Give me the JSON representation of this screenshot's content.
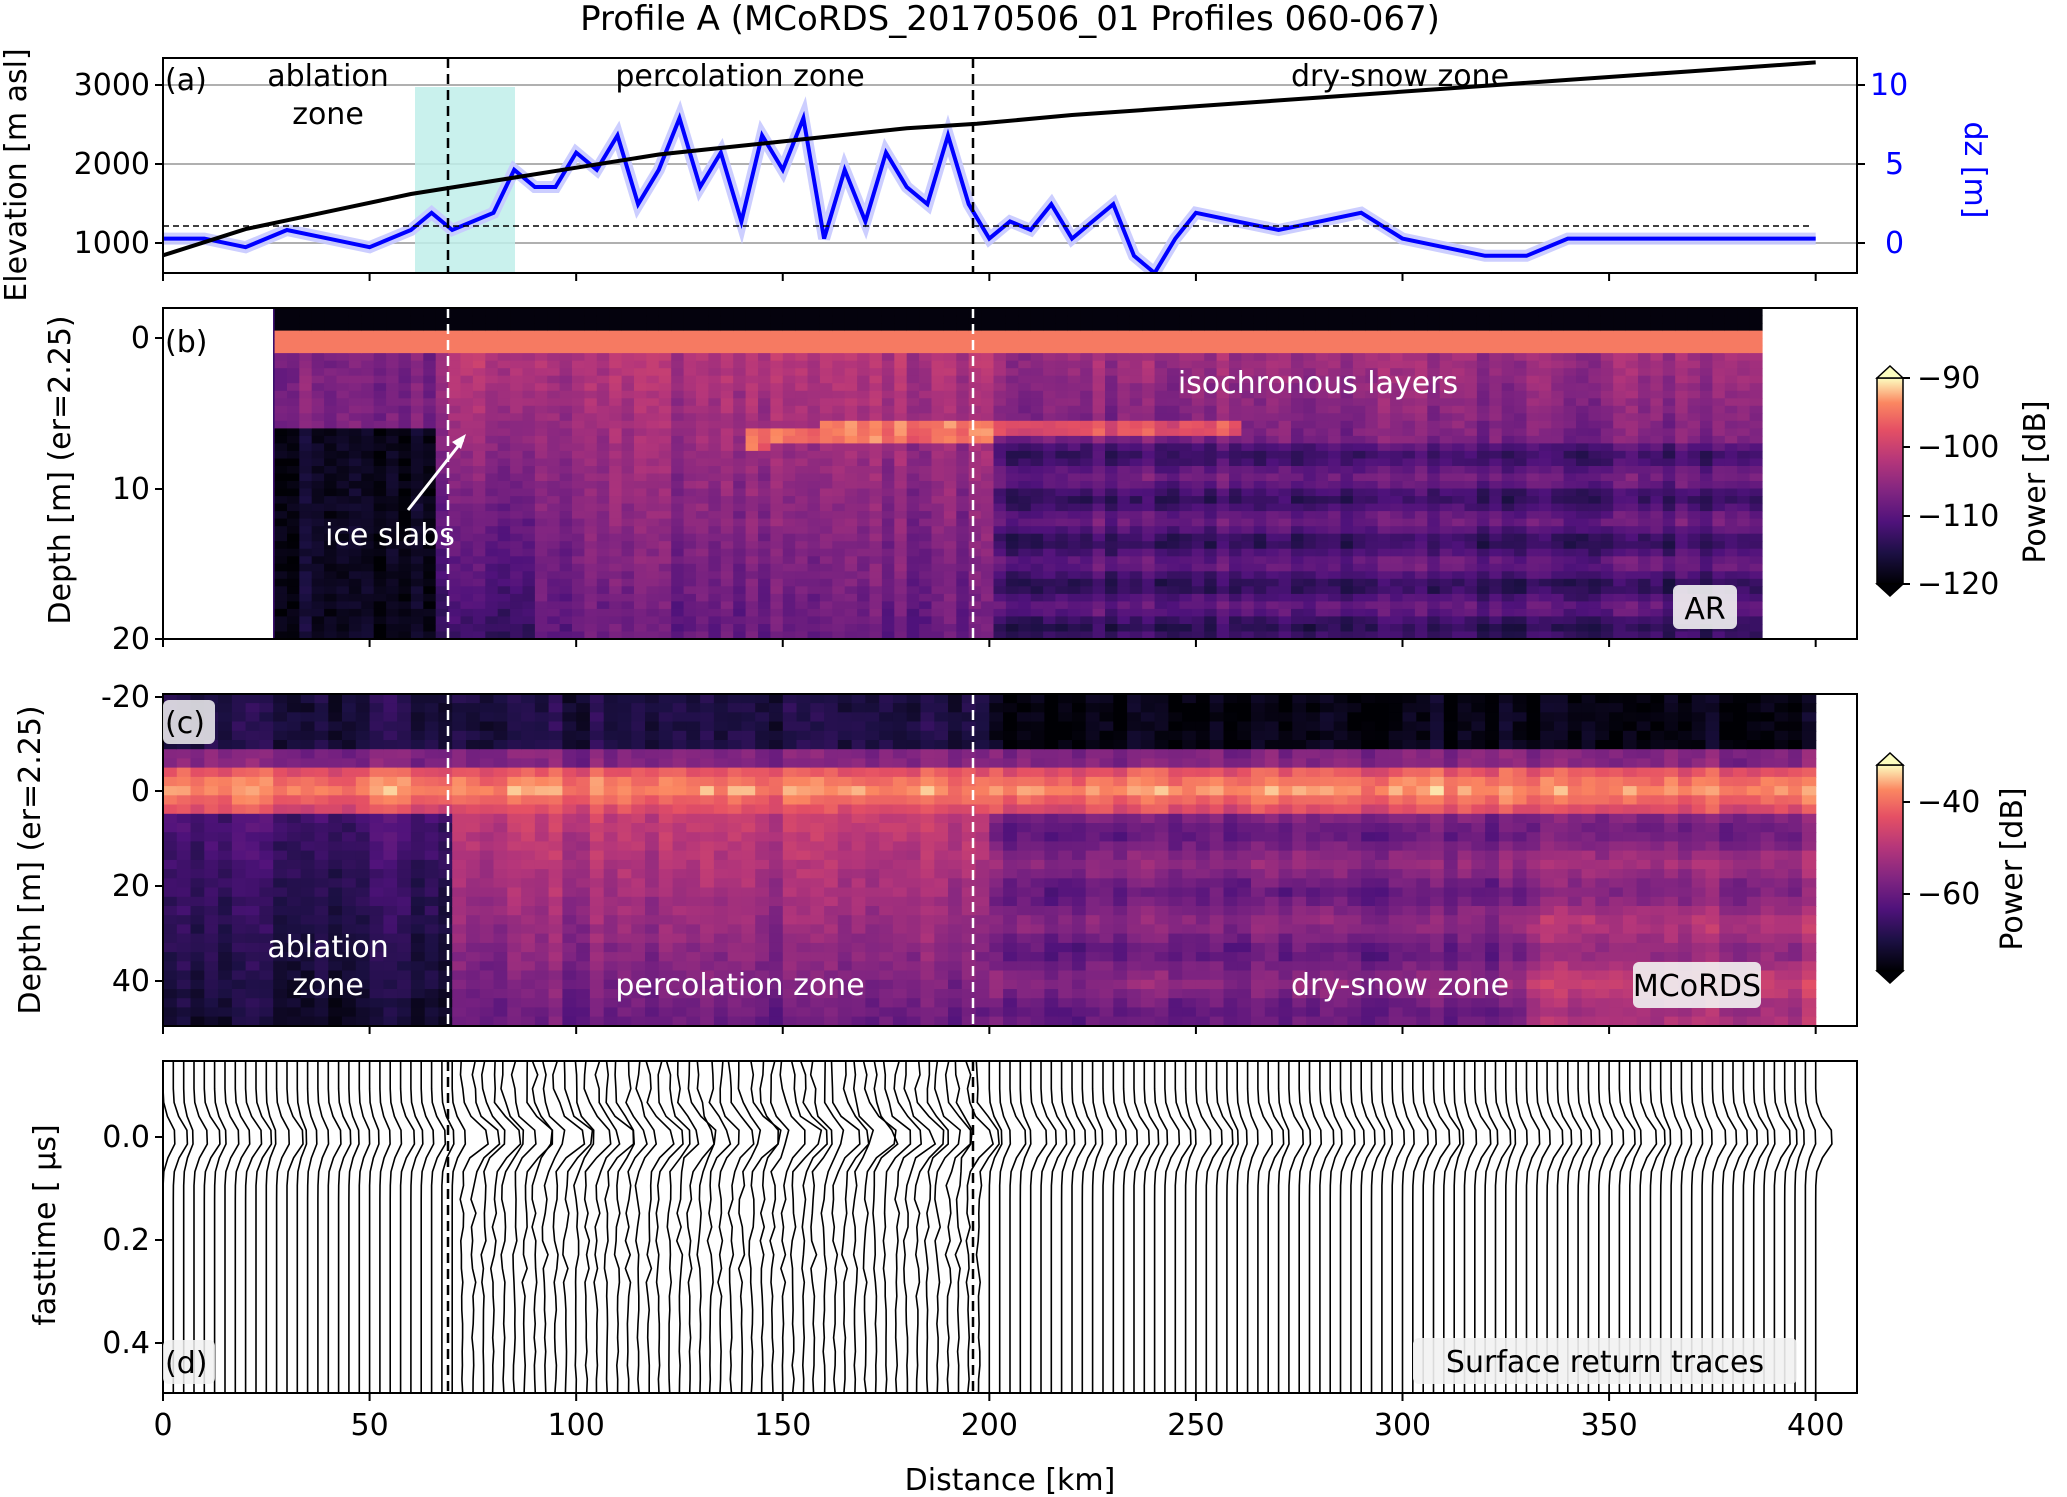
{
  "title": "Profile A (MCoRDS_20170506_01 Profiles 060-067)",
  "xlabel": "Distance [km]",
  "colors": {
    "dz": "#0000ff",
    "elevation": "#000000",
    "shade": "#bfeeea",
    "panel_border": "#000000"
  },
  "panels": {
    "a": {
      "letter": "(a)",
      "ylabel": "Elevation [m asl]",
      "ylabel_right": "dz [m]",
      "zones": [
        "ablation",
        "zone",
        "percolation zone",
        "dry-snow zone"
      ]
    },
    "b": {
      "letter": "(b)",
      "ylabel": "Depth [m] (er=2.25)",
      "annotation_layers": "isochronous layers",
      "annotation_slabs": "ice slabs",
      "label_box": "AR",
      "colorbar_label": "Power [dB]",
      "colorbar_ticks": [
        "−90",
        "−100",
        "−110",
        "−120"
      ]
    },
    "c": {
      "letter": "(c)",
      "ylabel": "Depth [m] (er=2.25)",
      "zones": [
        "ablation",
        "zone",
        "percolation zone",
        "dry-snow zone"
      ],
      "label_box": "MCoRDS",
      "colorbar_label": "Power [dB]",
      "colorbar_ticks": [
        "−40",
        "−60"
      ]
    },
    "d": {
      "letter": "(d)",
      "ylabel": "fasttime [ μs]",
      "label_box": "Surface return traces"
    }
  },
  "chart_data": [
    {
      "panel": "a",
      "type": "line",
      "x_ticks": [
        0,
        50,
        100,
        150,
        200,
        250,
        300,
        350,
        400
      ],
      "xlim": [
        0,
        410
      ],
      "y_ticks": [
        1000,
        2000,
        3000
      ],
      "ylim": [
        600,
        3050
      ],
      "y2_ticks": [
        0,
        5,
        10
      ],
      "y2lim": [
        -2,
        10.5
      ],
      "zone_boundaries_km": [
        69,
        197
      ],
      "shaded_region_km": [
        61,
        85
      ],
      "grid": "horizontal",
      "series": [
        {
          "name": "",
          "axis": "left",
          "x": [
            0,
            20,
            40,
            60,
            80,
            100,
            120,
            140,
            160,
            180,
            197,
            220,
            250,
            280,
            310,
            340,
            370,
            400
          ],
          "values": [
            800,
            1100,
            1300,
            1500,
            1650,
            1800,
            1950,
            2050,
            2150,
            2250,
            2300,
            2400,
            2500,
            2600,
            2700,
            2800,
            2900,
            3000
          ]
        },
        {
          "name": "",
          "axis": "right",
          "x": [
            0,
            10,
            20,
            30,
            40,
            50,
            60,
            65,
            70,
            75,
            80,
            85,
            90,
            95,
            100,
            105,
            110,
            115,
            120,
            125,
            130,
            135,
            140,
            145,
            150,
            155,
            160,
            165,
            170,
            175,
            180,
            185,
            190,
            195,
            200,
            205,
            210,
            215,
            220,
            225,
            230,
            235,
            240,
            245,
            250,
            260,
            270,
            280,
            290,
            300,
            310,
            320,
            330,
            340,
            350,
            360,
            370,
            380,
            390,
            400
          ],
          "values": [
            0,
            0,
            -0.5,
            0.5,
            0,
            -0.5,
            0.5,
            1.5,
            0.5,
            1,
            1.5,
            4,
            3,
            3,
            5,
            4,
            6,
            2,
            4,
            7,
            3,
            5,
            1,
            6,
            4,
            7,
            0,
            4,
            1,
            5,
            3,
            2,
            6,
            2,
            0,
            1,
            0.5,
            2,
            0,
            1,
            2,
            -1,
            -2,
            0,
            1.5,
            1,
            0.5,
            1,
            1.5,
            0,
            -0.5,
            -1,
            -1,
            0,
            0,
            0,
            0,
            0,
            0,
            0
          ]
        }
      ]
    },
    {
      "panel": "b",
      "type": "heatmap",
      "x_ticks": [
        0,
        50,
        100,
        150,
        200,
        250,
        300,
        350,
        400
      ],
      "xlim": [
        0,
        410
      ],
      "y_ticks": [
        0,
        10,
        20
      ],
      "ylim": [
        20,
        -2
      ],
      "data_extent_km": [
        27,
        387
      ],
      "zone_boundaries_km": [
        69,
        197
      ],
      "colorbar_range": [
        -120,
        -90
      ]
    },
    {
      "panel": "c",
      "type": "heatmap",
      "x_ticks": [
        0,
        50,
        100,
        150,
        200,
        250,
        300,
        350,
        400
      ],
      "xlim": [
        0,
        410
      ],
      "y_ticks": [
        -20,
        0,
        20,
        40
      ],
      "ylim": [
        50,
        -20
      ],
      "data_extent_km": [
        0,
        400
      ],
      "zone_boundaries_km": [
        69,
        197
      ],
      "colorbar_range": [
        -75,
        -30
      ]
    },
    {
      "panel": "d",
      "type": "line",
      "x_ticks": [
        0,
        50,
        100,
        150,
        200,
        250,
        300,
        350,
        400
      ],
      "xlim": [
        0,
        410
      ],
      "y_ticks": [
        0.0,
        0.2,
        0.4
      ],
      "ylim": [
        0.5,
        -0.15
      ],
      "zone_boundaries_km": [
        69,
        197
      ],
      "trace_spacing_km": 2.5,
      "trace_range_km": [
        0,
        400
      ]
    }
  ]
}
